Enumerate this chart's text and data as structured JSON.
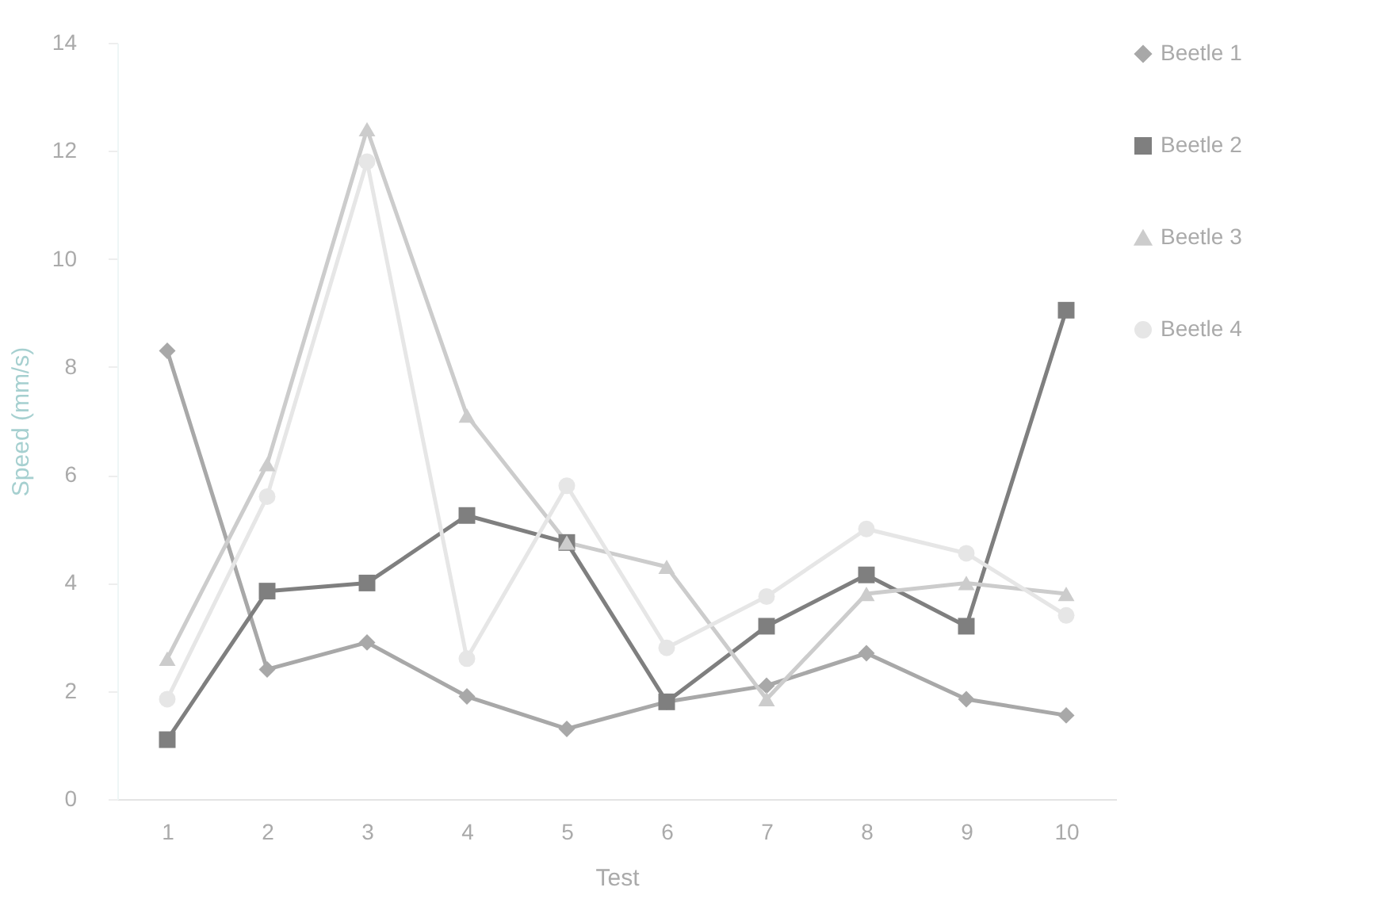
{
  "chart_data": {
    "type": "line",
    "xlabel": "Test",
    "ylabel": "Speed (mm/s)",
    "categories": [
      "1",
      "2",
      "3",
      "4",
      "5",
      "6",
      "7",
      "8",
      "9",
      "10"
    ],
    "ylim": [
      0,
      14
    ],
    "yticks": [
      0,
      2,
      4,
      6,
      8,
      10,
      12,
      14
    ],
    "grid": false,
    "legend": "right",
    "series": [
      {
        "name": "Beetle 1",
        "color": "#a8a8a8",
        "marker": "diamond",
        "values": [
          8.3,
          2.4,
          2.9,
          1.9,
          1.3,
          1.8,
          2.1,
          2.7,
          1.85,
          1.55
        ]
      },
      {
        "name": "Beetle 2",
        "color": "#7f7f7f",
        "marker": "square",
        "values": [
          1.1,
          3.85,
          4.0,
          5.25,
          4.75,
          1.8,
          3.2,
          4.15,
          3.2,
          9.05
        ]
      },
      {
        "name": "Beetle 3",
        "color": "#cccccc",
        "marker": "triangle",
        "values": [
          2.6,
          6.2,
          12.4,
          7.1,
          4.75,
          4.3,
          1.85,
          3.8,
          4.0,
          3.8
        ]
      },
      {
        "name": "Beetle 4",
        "color": "#e6e6e6",
        "marker": "circle",
        "values": [
          1.85,
          5.6,
          11.8,
          2.6,
          5.8,
          2.8,
          3.75,
          5.0,
          4.55,
          3.4
        ]
      }
    ]
  }
}
